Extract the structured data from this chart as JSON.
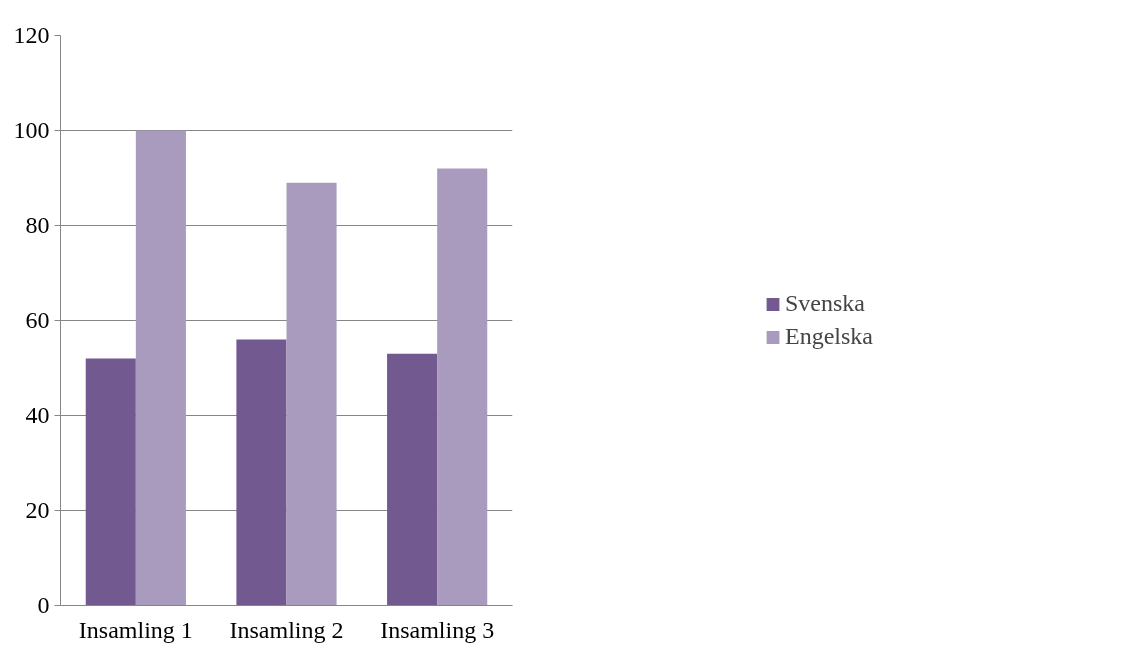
{
  "chart_data": {
    "type": "bar",
    "categories": [
      "Insamling 1",
      "Insamling 2",
      "Insamling 3"
    ],
    "series": [
      {
        "name": "Svenska",
        "color": "#725990",
        "values": [
          52,
          56,
          53
        ]
      },
      {
        "name": "Engelska",
        "color": "#a99bbd",
        "values": [
          100,
          89,
          92
        ]
      }
    ],
    "ylim": [
      0,
      120
    ],
    "yticks": [
      0,
      20,
      40,
      60,
      80,
      100,
      120
    ],
    "grid": "y",
    "legend": "right"
  }
}
